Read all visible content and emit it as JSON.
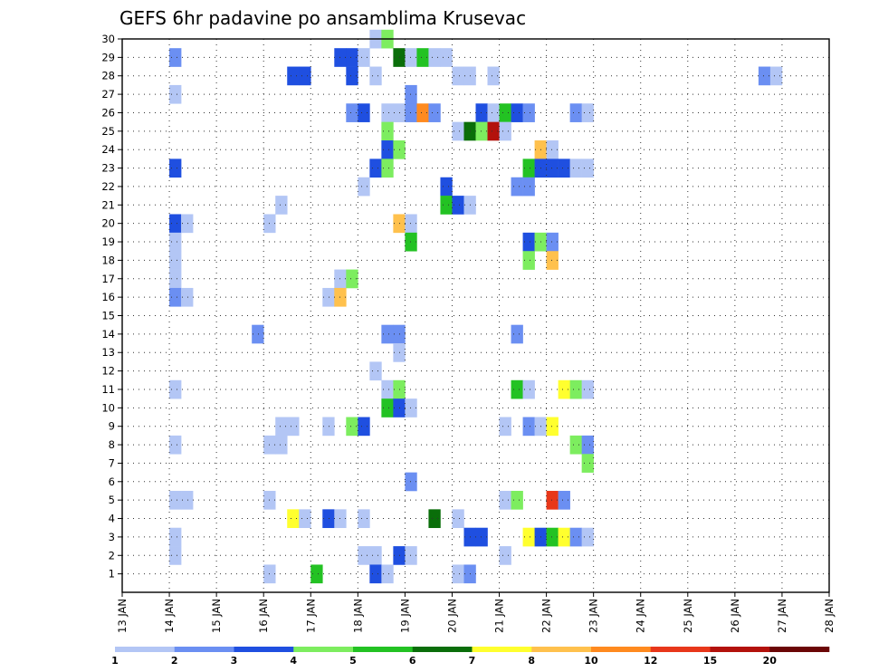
{
  "chart_data": {
    "type": "heatmap",
    "title": "GEFS 6hr padavine po ansamblima Krusevac",
    "x_tick_labels": [
      "13 JAN",
      "14 JAN",
      "15 JAN",
      "16 JAN",
      "17 JAN",
      "18 JAN",
      "19 JAN",
      "20 JAN",
      "21 JAN",
      "22 JAN",
      "23 JAN",
      "24 JAN",
      "25 JAN",
      "26 JAN",
      "27 JAN",
      "28 JAN"
    ],
    "x_range_hours": [
      0,
      360
    ],
    "x_step_hours": 6,
    "y_tick_labels": [
      "1",
      "2",
      "3",
      "4",
      "5",
      "6",
      "7",
      "8",
      "9",
      "10",
      "11",
      "12",
      "13",
      "14",
      "15",
      "16",
      "17",
      "18",
      "19",
      "20",
      "21",
      "22",
      "23",
      "24",
      "25",
      "26",
      "27",
      "28",
      "29",
      "30"
    ],
    "y_range": [
      0,
      30
    ],
    "grid": true,
    "legend": {
      "position": "bottom",
      "levels": [
        "1",
        "2",
        "3",
        "4",
        "5",
        "6",
        "7",
        "8",
        "10",
        "12",
        "15",
        "20"
      ],
      "colors": [
        "#b3c6f5",
        "#6b8ff2",
        "#1f4fe0",
        "#7ded5f",
        "#23c223",
        "#0a6e0a",
        "#ffff2e",
        "#ffc14d",
        "#ff8a1f",
        "#e8371a",
        "#b3120c",
        "#6b0606"
      ]
    },
    "cells": [
      {
        "member": 30,
        "hour": 126,
        "c": 1
      },
      {
        "member": 30,
        "hour": 132,
        "c": 4
      },
      {
        "member": 29,
        "hour": 24,
        "c": 2
      },
      {
        "member": 29,
        "hour": 108,
        "c": 3
      },
      {
        "member": 29,
        "hour": 114,
        "c": 3
      },
      {
        "member": 29,
        "hour": 120,
        "c": 1
      },
      {
        "member": 29,
        "hour": 138,
        "c": 6
      },
      {
        "member": 29,
        "hour": 144,
        "c": 1
      },
      {
        "member": 29,
        "hour": 150,
        "c": 5
      },
      {
        "member": 29,
        "hour": 156,
        "c": 1
      },
      {
        "member": 29,
        "hour": 162,
        "c": 1
      },
      {
        "member": 28,
        "hour": 84,
        "c": 3
      },
      {
        "member": 28,
        "hour": 90,
        "c": 3
      },
      {
        "member": 28,
        "hour": 114,
        "c": 3
      },
      {
        "member": 28,
        "hour": 126,
        "c": 1
      },
      {
        "member": 28,
        "hour": 168,
        "c": 1
      },
      {
        "member": 28,
        "hour": 174,
        "c": 1
      },
      {
        "member": 28,
        "hour": 186,
        "c": 1
      },
      {
        "member": 28,
        "hour": 324,
        "c": 2
      },
      {
        "member": 28,
        "hour": 330,
        "c": 1
      },
      {
        "member": 27,
        "hour": 24,
        "c": 1
      },
      {
        "member": 27,
        "hour": 144,
        "c": 2
      },
      {
        "member": 26,
        "hour": 114,
        "c": 2
      },
      {
        "member": 26,
        "hour": 120,
        "c": 3
      },
      {
        "member": 26,
        "hour": 132,
        "c": 1
      },
      {
        "member": 26,
        "hour": 138,
        "c": 1
      },
      {
        "member": 26,
        "hour": 144,
        "c": 2
      },
      {
        "member": 26,
        "hour": 150,
        "c": 9
      },
      {
        "member": 26,
        "hour": 156,
        "c": 2
      },
      {
        "member": 26,
        "hour": 180,
        "c": 3
      },
      {
        "member": 26,
        "hour": 186,
        "c": 1
      },
      {
        "member": 26,
        "hour": 192,
        "c": 5
      },
      {
        "member": 26,
        "hour": 198,
        "c": 3
      },
      {
        "member": 26,
        "hour": 204,
        "c": 2
      },
      {
        "member": 26,
        "hour": 228,
        "c": 2
      },
      {
        "member": 26,
        "hour": 234,
        "c": 1
      },
      {
        "member": 25,
        "hour": 132,
        "c": 4
      },
      {
        "member": 25,
        "hour": 168,
        "c": 1
      },
      {
        "member": 25,
        "hour": 174,
        "c": 6
      },
      {
        "member": 25,
        "hour": 180,
        "c": 4
      },
      {
        "member": 25,
        "hour": 186,
        "c": 11
      },
      {
        "member": 25,
        "hour": 192,
        "c": 1
      },
      {
        "member": 24,
        "hour": 132,
        "c": 3
      },
      {
        "member": 24,
        "hour": 138,
        "c": 4
      },
      {
        "member": 24,
        "hour": 210,
        "c": 8
      },
      {
        "member": 24,
        "hour": 216,
        "c": 1
      },
      {
        "member": 23,
        "hour": 24,
        "c": 3
      },
      {
        "member": 23,
        "hour": 126,
        "c": 3
      },
      {
        "member": 23,
        "hour": 132,
        "c": 4
      },
      {
        "member": 23,
        "hour": 204,
        "c": 5
      },
      {
        "member": 23,
        "hour": 210,
        "c": 3
      },
      {
        "member": 23,
        "hour": 216,
        "c": 3
      },
      {
        "member": 23,
        "hour": 222,
        "c": 3
      },
      {
        "member": 23,
        "hour": 228,
        "c": 1
      },
      {
        "member": 23,
        "hour": 234,
        "c": 1
      },
      {
        "member": 22,
        "hour": 120,
        "c": 1
      },
      {
        "member": 22,
        "hour": 162,
        "c": 3
      },
      {
        "member": 22,
        "hour": 198,
        "c": 2
      },
      {
        "member": 22,
        "hour": 204,
        "c": 2
      },
      {
        "member": 21,
        "hour": 78,
        "c": 1
      },
      {
        "member": 21,
        "hour": 162,
        "c": 5
      },
      {
        "member": 21,
        "hour": 168,
        "c": 3
      },
      {
        "member": 21,
        "hour": 174,
        "c": 1
      },
      {
        "member": 20,
        "hour": 24,
        "c": 3
      },
      {
        "member": 20,
        "hour": 30,
        "c": 1
      },
      {
        "member": 20,
        "hour": 72,
        "c": 1
      },
      {
        "member": 20,
        "hour": 138,
        "c": 8
      },
      {
        "member": 20,
        "hour": 144,
        "c": 1
      },
      {
        "member": 19,
        "hour": 24,
        "c": 1
      },
      {
        "member": 19,
        "hour": 144,
        "c": 5
      },
      {
        "member": 19,
        "hour": 204,
        "c": 3
      },
      {
        "member": 19,
        "hour": 210,
        "c": 4
      },
      {
        "member": 19,
        "hour": 216,
        "c": 2
      },
      {
        "member": 18,
        "hour": 24,
        "c": 1
      },
      {
        "member": 18,
        "hour": 204,
        "c": 4
      },
      {
        "member": 18,
        "hour": 216,
        "c": 8
      },
      {
        "member": 17,
        "hour": 24,
        "c": 1
      },
      {
        "member": 17,
        "hour": 108,
        "c": 1
      },
      {
        "member": 17,
        "hour": 114,
        "c": 4
      },
      {
        "member": 16,
        "hour": 24,
        "c": 2
      },
      {
        "member": 16,
        "hour": 30,
        "c": 1
      },
      {
        "member": 16,
        "hour": 102,
        "c": 1
      },
      {
        "member": 16,
        "hour": 108,
        "c": 8
      },
      {
        "member": 14,
        "hour": 66,
        "c": 2
      },
      {
        "member": 14,
        "hour": 132,
        "c": 2
      },
      {
        "member": 14,
        "hour": 138,
        "c": 2
      },
      {
        "member": 14,
        "hour": 198,
        "c": 2
      },
      {
        "member": 13,
        "hour": 138,
        "c": 1
      },
      {
        "member": 12,
        "hour": 126,
        "c": 1
      },
      {
        "member": 11,
        "hour": 24,
        "c": 1
      },
      {
        "member": 11,
        "hour": 132,
        "c": 1
      },
      {
        "member": 11,
        "hour": 138,
        "c": 4
      },
      {
        "member": 11,
        "hour": 198,
        "c": 5
      },
      {
        "member": 11,
        "hour": 204,
        "c": 1
      },
      {
        "member": 11,
        "hour": 222,
        "c": 7
      },
      {
        "member": 11,
        "hour": 228,
        "c": 4
      },
      {
        "member": 11,
        "hour": 234,
        "c": 1
      },
      {
        "member": 10,
        "hour": 132,
        "c": 5
      },
      {
        "member": 10,
        "hour": 138,
        "c": 3
      },
      {
        "member": 10,
        "hour": 144,
        "c": 1
      },
      {
        "member": 9,
        "hour": 78,
        "c": 1
      },
      {
        "member": 9,
        "hour": 84,
        "c": 1
      },
      {
        "member": 9,
        "hour": 102,
        "c": 1
      },
      {
        "member": 9,
        "hour": 114,
        "c": 4
      },
      {
        "member": 9,
        "hour": 120,
        "c": 3
      },
      {
        "member": 9,
        "hour": 192,
        "c": 1
      },
      {
        "member": 9,
        "hour": 204,
        "c": 2
      },
      {
        "member": 9,
        "hour": 210,
        "c": 1
      },
      {
        "member": 9,
        "hour": 216,
        "c": 7
      },
      {
        "member": 8,
        "hour": 24,
        "c": 1
      },
      {
        "member": 8,
        "hour": 72,
        "c": 1
      },
      {
        "member": 8,
        "hour": 78,
        "c": 1
      },
      {
        "member": 8,
        "hour": 228,
        "c": 4
      },
      {
        "member": 8,
        "hour": 234,
        "c": 2
      },
      {
        "member": 7,
        "hour": 234,
        "c": 4
      },
      {
        "member": 6,
        "hour": 144,
        "c": 2
      },
      {
        "member": 5,
        "hour": 24,
        "c": 1
      },
      {
        "member": 5,
        "hour": 30,
        "c": 1
      },
      {
        "member": 5,
        "hour": 72,
        "c": 1
      },
      {
        "member": 5,
        "hour": 192,
        "c": 1
      },
      {
        "member": 5,
        "hour": 198,
        "c": 4
      },
      {
        "member": 5,
        "hour": 216,
        "c": 10
      },
      {
        "member": 5,
        "hour": 222,
        "c": 2
      },
      {
        "member": 4,
        "hour": 84,
        "c": 7
      },
      {
        "member": 4,
        "hour": 90,
        "c": 1
      },
      {
        "member": 4,
        "hour": 102,
        "c": 3
      },
      {
        "member": 4,
        "hour": 108,
        "c": 1
      },
      {
        "member": 4,
        "hour": 120,
        "c": 1
      },
      {
        "member": 4,
        "hour": 156,
        "c": 6
      },
      {
        "member": 4,
        "hour": 168,
        "c": 1
      },
      {
        "member": 3,
        "hour": 24,
        "c": 1
      },
      {
        "member": 3,
        "hour": 174,
        "c": 3
      },
      {
        "member": 3,
        "hour": 180,
        "c": 3
      },
      {
        "member": 3,
        "hour": 204,
        "c": 7
      },
      {
        "member": 3,
        "hour": 210,
        "c": 3
      },
      {
        "member": 3,
        "hour": 216,
        "c": 5
      },
      {
        "member": 3,
        "hour": 222,
        "c": 7
      },
      {
        "member": 3,
        "hour": 228,
        "c": 2
      },
      {
        "member": 3,
        "hour": 234,
        "c": 1
      },
      {
        "member": 2,
        "hour": 24,
        "c": 1
      },
      {
        "member": 2,
        "hour": 120,
        "c": 1
      },
      {
        "member": 2,
        "hour": 126,
        "c": 1
      },
      {
        "member": 2,
        "hour": 138,
        "c": 3
      },
      {
        "member": 2,
        "hour": 144,
        "c": 1
      },
      {
        "member": 2,
        "hour": 192,
        "c": 1
      },
      {
        "member": 1,
        "hour": 72,
        "c": 1
      },
      {
        "member": 1,
        "hour": 96,
        "c": 5
      },
      {
        "member": 1,
        "hour": 126,
        "c": 3
      },
      {
        "member": 1,
        "hour": 132,
        "c": 1
      },
      {
        "member": 1,
        "hour": 168,
        "c": 1
      },
      {
        "member": 1,
        "hour": 174,
        "c": 2
      }
    ]
  }
}
